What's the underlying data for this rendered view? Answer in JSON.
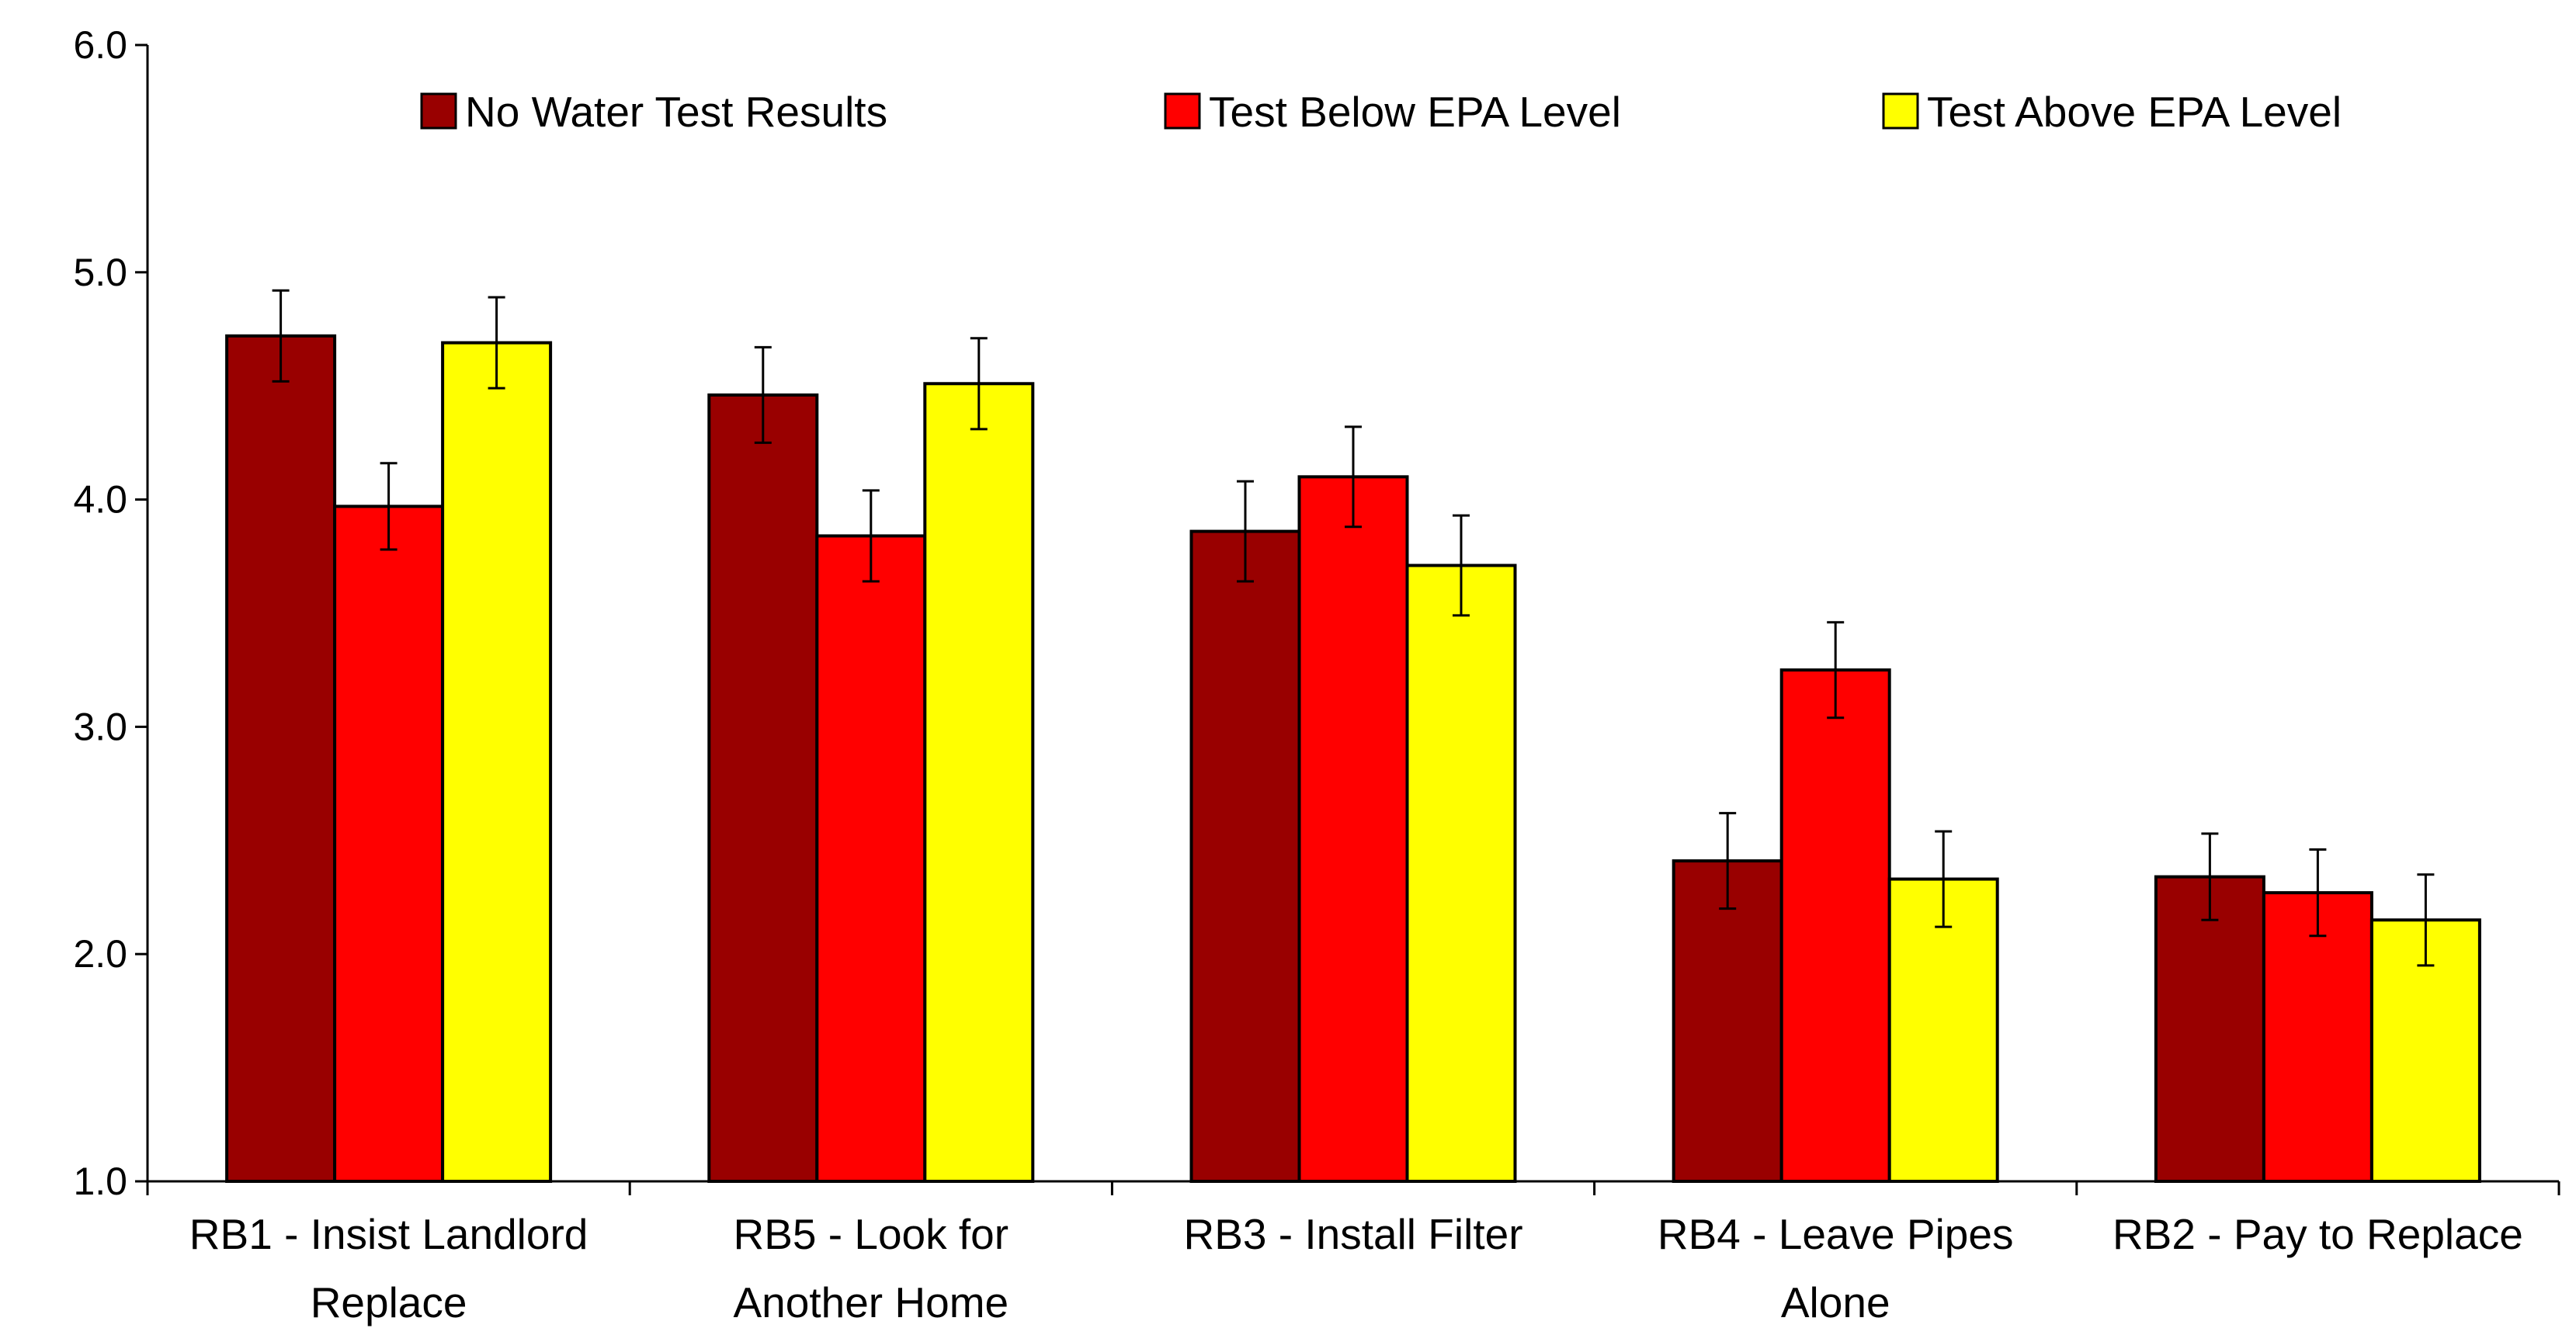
{
  "chart_data": {
    "type": "bar",
    "title": "",
    "xlabel": "",
    "ylabel": "",
    "ylim": [
      1.0,
      6.0
    ],
    "yticks": [
      "1.0",
      "2.0",
      "3.0",
      "4.0",
      "5.0",
      "6.0"
    ],
    "legend_position": "top",
    "grid": false,
    "categories": [
      [
        "RB1 - Insist Landlord",
        "Replace"
      ],
      [
        "RB5 - Look for",
        "Another Home"
      ],
      [
        "RB3 - Install Filter"
      ],
      [
        "RB4 - Leave Pipes",
        "Alone"
      ],
      [
        "RB2 - Pay to Replace"
      ]
    ],
    "series": [
      {
        "name": "No Water Test Results",
        "color": "#990000",
        "values": [
          4.72,
          4.46,
          3.86,
          2.41,
          2.34
        ],
        "errors": [
          0.2,
          0.21,
          0.22,
          0.21,
          0.19
        ]
      },
      {
        "name": "Test Below EPA Level",
        "color": "#ff0000",
        "values": [
          3.97,
          3.84,
          4.1,
          3.25,
          2.27
        ],
        "errors": [
          0.19,
          0.2,
          0.22,
          0.21,
          0.19
        ]
      },
      {
        "name": "Test Above EPA Level",
        "color": "#ffff00",
        "values": [
          4.69,
          4.51,
          3.71,
          2.33,
          2.15
        ],
        "errors": [
          0.2,
          0.2,
          0.22,
          0.21,
          0.2
        ]
      }
    ]
  }
}
